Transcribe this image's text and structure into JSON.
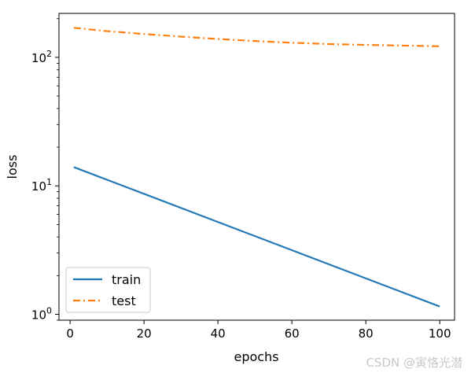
{
  "chart_data": {
    "type": "line",
    "title": "",
    "xlabel": "epochs",
    "ylabel": "loss",
    "xscale": "linear",
    "yscale": "log",
    "xlim": [
      -3,
      104
    ],
    "ylim": [
      0.9,
      220
    ],
    "xticks": [
      0,
      20,
      40,
      60,
      80,
      100
    ],
    "xtick_labels": [
      "0",
      "20",
      "40",
      "60",
      "80",
      "100"
    ],
    "yticks": [
      1,
      10,
      100
    ],
    "ytick_label_base": "10",
    "ytick_label_exponents": [
      "0",
      "1",
      "2"
    ],
    "grid": false,
    "legend_position": "lower-left",
    "series": [
      {
        "name": "train",
        "color": "#1f77b4",
        "linestyle": "solid",
        "x": [
          1,
          100
        ],
        "values": [
          14,
          1.15
        ]
      },
      {
        "name": "test",
        "color": "#ff7f0e",
        "linestyle": "dashdot",
        "x": [
          1,
          10,
          20,
          30,
          40,
          50,
          60,
          70,
          80,
          90,
          100
        ],
        "values": [
          170,
          160,
          152,
          145,
          139,
          134,
          130,
          127,
          125,
          123.5,
          122
        ]
      }
    ]
  },
  "watermark": "CSDN @寅恪光潜"
}
